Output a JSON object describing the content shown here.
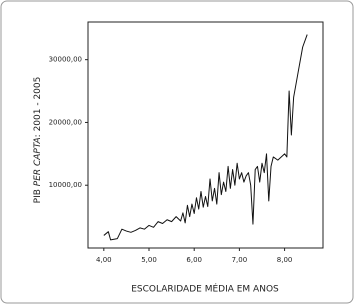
{
  "chart_data": {
    "type": "line",
    "x_label": "ESCOLARIDADE MÉDIA EM ANOS",
    "y_label_parts": [
      "PIB ",
      "PER CAPTA",
      ": 2001 - 2005"
    ],
    "x": [
      4.0,
      4.1,
      4.15,
      4.3,
      4.4,
      4.5,
      4.6,
      4.7,
      4.8,
      4.9,
      5.0,
      5.1,
      5.2,
      5.3,
      5.4,
      5.5,
      5.6,
      5.7,
      5.75,
      5.8,
      5.85,
      5.9,
      5.95,
      6.0,
      6.05,
      6.1,
      6.15,
      6.2,
      6.25,
      6.3,
      6.35,
      6.4,
      6.45,
      6.5,
      6.55,
      6.6,
      6.65,
      6.7,
      6.75,
      6.8,
      6.85,
      6.9,
      6.95,
      7.0,
      7.05,
      7.1,
      7.15,
      7.2,
      7.25,
      7.3,
      7.35,
      7.4,
      7.45,
      7.5,
      7.55,
      7.6,
      7.65,
      7.7,
      7.75,
      7.85,
      8.0,
      8.05,
      8.1,
      8.15,
      8.2,
      8.3,
      8.4,
      8.5
    ],
    "series": [
      {
        "color": "#111111",
        "values": [
          2000,
          2600,
          1300,
          1500,
          3000,
          2700,
          2500,
          2800,
          3200,
          3000,
          3600,
          3300,
          4200,
          3900,
          4500,
          4200,
          5000,
          4300,
          5600,
          4000,
          6800,
          5000,
          7000,
          5500,
          8000,
          6200,
          9000,
          6500,
          8200,
          6600,
          11000,
          7500,
          9500,
          7000,
          12000,
          8500,
          10500,
          9000,
          13000,
          9500,
          12500,
          10000,
          13500,
          11000,
          12000,
          10500,
          11500,
          12000,
          10000,
          3800,
          12500,
          13000,
          10500,
          13500,
          12000,
          15000,
          7500,
          13000,
          14500,
          14000,
          15000,
          14500,
          25000,
          18000,
          24000,
          28000,
          32000,
          34000
        ]
      }
    ],
    "xlim": [
      3.65,
      8.85
    ],
    "ylim": [
      0,
      36000
    ],
    "xticks": [
      {
        "value": 4,
        "label": "4,00"
      },
      {
        "value": 5,
        "label": "5,00"
      },
      {
        "value": 6,
        "label": "6,00"
      },
      {
        "value": 7,
        "label": "7,00"
      },
      {
        "value": 8,
        "label": "8,00"
      }
    ],
    "yticks": [
      {
        "value": 10000,
        "label": "10000,00"
      },
      {
        "value": 20000,
        "label": "20000,00"
      },
      {
        "value": 30000,
        "label": "30000,00"
      }
    ]
  }
}
